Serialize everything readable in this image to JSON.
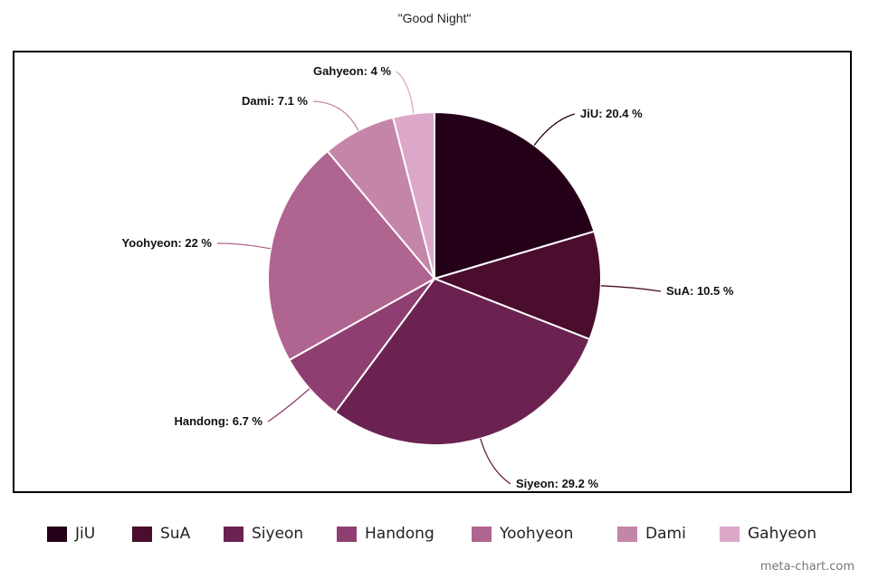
{
  "chart_data": {
    "type": "pie",
    "title": "\"Good Night\"",
    "slices": [
      {
        "name": "JiU",
        "value": 20.4,
        "color": "#250019",
        "label": "JiU: 20.4 %"
      },
      {
        "name": "SuA",
        "value": 10.5,
        "color": "#4a0d2d",
        "label": "SuA: 10.5 %"
      },
      {
        "name": "Siyeon",
        "value": 29.2,
        "color": "#6b2251",
        "label": "Siyeon: 29.2 %"
      },
      {
        "name": "Handong",
        "value": 6.7,
        "color": "#8f3e72",
        "label": "Handong: 6.7 %"
      },
      {
        "name": "Yoohyeon",
        "value": 22,
        "color": "#b06490",
        "label": "Yoohyeon: 22 %"
      },
      {
        "name": "Dami",
        "value": 7.1,
        "color": "#c486a8",
        "label": "Dami: 7.1 %"
      },
      {
        "name": "Gahyeon",
        "value": 4,
        "color": "#dca8c9",
        "label": "Gahyeon: 4 %"
      }
    ],
    "legend_placement": "bottom"
  },
  "credit": "meta-chart.com"
}
